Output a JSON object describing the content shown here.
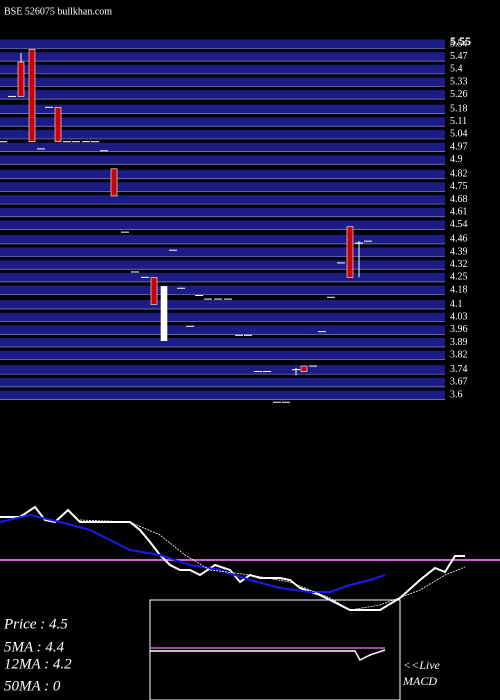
{
  "chart_data": [
    {
      "type": "candlestick",
      "title": "BSE 526075 bullkhan.com",
      "xlim": [
        0,
        500
      ],
      "ylim": [
        3.5,
        5.6
      ],
      "yticks": [
        5.55,
        5.54,
        5.47,
        5.4,
        5.33,
        5.26,
        5.18,
        5.11,
        5.04,
        4.97,
        4.9,
        4.82,
        4.75,
        4.68,
        4.61,
        4.54,
        4.46,
        4.39,
        4.32,
        4.25,
        4.18,
        4.1,
        4.03,
        3.96,
        3.89,
        3.82,
        3.74,
        3.67,
        3.6
      ],
      "grid": true,
      "grid_color": "#1c1c86",
      "up_color": "#ffffff",
      "down_color": "#cc0000",
      "candles": [
        {
          "x": 3,
          "open": 5.0,
          "high": 5.0,
          "low": 5.0,
          "close": 5.0
        },
        {
          "x": 12,
          "open": 5.25,
          "high": 5.25,
          "low": 5.25,
          "close": 5.25
        },
        {
          "x": 21,
          "open": 5.44,
          "high": 5.49,
          "low": 5.25,
          "close": 5.25
        },
        {
          "x": 32,
          "open": 5.51,
          "high": 5.51,
          "low": 5.0,
          "close": 5.0
        },
        {
          "x": 41,
          "open": 4.96,
          "high": 4.96,
          "low": 4.96,
          "close": 4.96
        },
        {
          "x": 49,
          "open": 5.19,
          "high": 5.19,
          "low": 5.19,
          "close": 5.19
        },
        {
          "x": 58,
          "open": 5.19,
          "high": 5.19,
          "low": 5.0,
          "close": 5.0
        },
        {
          "x": 67,
          "open": 5.0,
          "high": 5.0,
          "low": 5.0,
          "close": 5.0
        },
        {
          "x": 76,
          "open": 5.0,
          "high": 5.0,
          "low": 5.0,
          "close": 5.0
        },
        {
          "x": 86,
          "open": 5.0,
          "high": 5.0,
          "low": 5.0,
          "close": 5.0
        },
        {
          "x": 95,
          "open": 5.0,
          "high": 5.0,
          "low": 5.0,
          "close": 5.0
        },
        {
          "x": 104,
          "open": 4.95,
          "high": 4.95,
          "low": 4.95,
          "close": 4.95
        },
        {
          "x": 114,
          "open": 4.85,
          "high": 4.85,
          "low": 4.7,
          "close": 4.7
        },
        {
          "x": 125,
          "open": 4.5,
          "high": 4.5,
          "low": 4.5,
          "close": 4.5
        },
        {
          "x": 135,
          "open": 4.28,
          "high": 4.28,
          "low": 4.28,
          "close": 4.28
        },
        {
          "x": 145,
          "open": 4.25,
          "high": 4.25,
          "low": 4.25,
          "close": 4.25
        },
        {
          "x": 154,
          "open": 4.25,
          "high": 4.25,
          "low": 4.1,
          "close": 4.1
        },
        {
          "x": 164,
          "open": 3.9,
          "high": 4.2,
          "low": 3.9,
          "close": 4.2
        },
        {
          "x": 173,
          "open": 4.4,
          "high": 4.4,
          "low": 4.4,
          "close": 4.4
        },
        {
          "x": 181,
          "open": 4.19,
          "high": 4.19,
          "low": 4.19,
          "close": 4.19
        },
        {
          "x": 190,
          "open": 3.98,
          "high": 3.98,
          "low": 3.98,
          "close": 3.98
        },
        {
          "x": 199,
          "open": 4.15,
          "high": 4.15,
          "low": 4.15,
          "close": 4.15
        },
        {
          "x": 208,
          "open": 4.13,
          "high": 4.13,
          "low": 4.13,
          "close": 4.13
        },
        {
          "x": 218,
          "open": 4.13,
          "high": 4.13,
          "low": 4.13,
          "close": 4.13
        },
        {
          "x": 228,
          "open": 4.13,
          "high": 4.13,
          "low": 4.13,
          "close": 4.13
        },
        {
          "x": 239,
          "open": 3.93,
          "high": 3.93,
          "low": 3.93,
          "close": 3.93
        },
        {
          "x": 248,
          "open": 3.93,
          "high": 3.93,
          "low": 3.93,
          "close": 3.93
        },
        {
          "x": 258,
          "open": 3.73,
          "high": 3.73,
          "low": 3.73,
          "close": 3.73
        },
        {
          "x": 267,
          "open": 3.73,
          "high": 3.73,
          "low": 3.73,
          "close": 3.73
        },
        {
          "x": 277,
          "open": 3.56,
          "high": 3.56,
          "low": 3.56,
          "close": 3.56
        },
        {
          "x": 286,
          "open": 3.56,
          "high": 3.56,
          "low": 3.56,
          "close": 3.56
        },
        {
          "x": 296,
          "open": 3.74,
          "high": 3.75,
          "low": 3.71,
          "close": 3.74
        },
        {
          "x": 304,
          "open": 3.76,
          "high": 3.76,
          "low": 3.73,
          "close": 3.73
        },
        {
          "x": 313,
          "open": 3.76,
          "high": 3.76,
          "low": 3.76,
          "close": 3.76
        },
        {
          "x": 322,
          "open": 3.95,
          "high": 3.95,
          "low": 3.95,
          "close": 3.95
        },
        {
          "x": 331,
          "open": 4.14,
          "high": 4.14,
          "low": 4.14,
          "close": 4.14
        },
        {
          "x": 341,
          "open": 4.33,
          "high": 4.33,
          "low": 4.33,
          "close": 4.33
        },
        {
          "x": 350,
          "open": 4.53,
          "high": 4.53,
          "low": 4.25,
          "close": 4.25
        },
        {
          "x": 359,
          "open": 4.44,
          "high": 4.45,
          "low": 4.25,
          "close": 4.44
        },
        {
          "x": 368,
          "open": 4.45,
          "high": 4.45,
          "low": 4.45,
          "close": 4.45
        }
      ]
    },
    {
      "type": "line",
      "xlim": [
        0,
        500
      ],
      "ylim": [
        0,
        200
      ],
      "reference_line": {
        "value": 140,
        "color": "#cc66cc"
      },
      "series": [
        {
          "name": "Price",
          "color": "#ffffff",
          "style": "solid",
          "x": [
            0,
            20,
            35,
            45,
            55,
            68,
            80,
            130,
            140,
            150,
            160,
            170,
            180,
            190,
            200,
            215,
            230,
            240,
            250,
            260,
            280,
            290,
            300,
            320,
            330,
            340,
            350,
            380,
            400,
            420,
            435,
            445,
            455,
            465
          ],
          "values": [
            183,
            183,
            193,
            180,
            178,
            190,
            178,
            178,
            170,
            158,
            145,
            135,
            130,
            130,
            125,
            135,
            130,
            118,
            125,
            122,
            122,
            120,
            112,
            105,
            100,
            95,
            90,
            90,
            102,
            120,
            132,
            128,
            144,
            144
          ]
        },
        {
          "name": "5MA",
          "color": "#1a1aee",
          "style": "solid",
          "x": [
            0,
            30,
            60,
            90,
            110,
            130,
            160,
            190,
            220,
            250,
            280,
            310,
            330,
            350,
            370,
            385
          ],
          "values": [
            178,
            185,
            178,
            170,
            160,
            150,
            145,
            135,
            130,
            120,
            112,
            108,
            108,
            115,
            120,
            125
          ]
        },
        {
          "name": "12MA",
          "color": "#ffffff",
          "style": "dotted",
          "x": [
            80,
            130,
            160,
            185,
            210,
            250,
            290,
            330,
            350,
            380,
            420,
            445,
            465
          ],
          "values": [
            180,
            178,
            165,
            145,
            130,
            125,
            118,
            102,
            90,
            95,
            110,
            125,
            133
          ]
        }
      ],
      "labels": [
        "Price   : 4.5",
        "5MA : 4.4",
        "12MA : 4.2",
        "50MA : 0"
      ]
    },
    {
      "type": "macd",
      "title": "<<Live MACD",
      "xlim": [
        0,
        500
      ],
      "ylim": [
        0,
        200
      ],
      "series": [
        {
          "color": "#ffffff",
          "x": [
            150,
            355,
            360,
            370,
            385
          ],
          "values": [
            49,
            49,
            40,
            45,
            50
          ]
        },
        {
          "color": "#cc66cc",
          "x": [
            150,
            385
          ],
          "values": [
            52,
            52
          ]
        }
      ]
    }
  ]
}
